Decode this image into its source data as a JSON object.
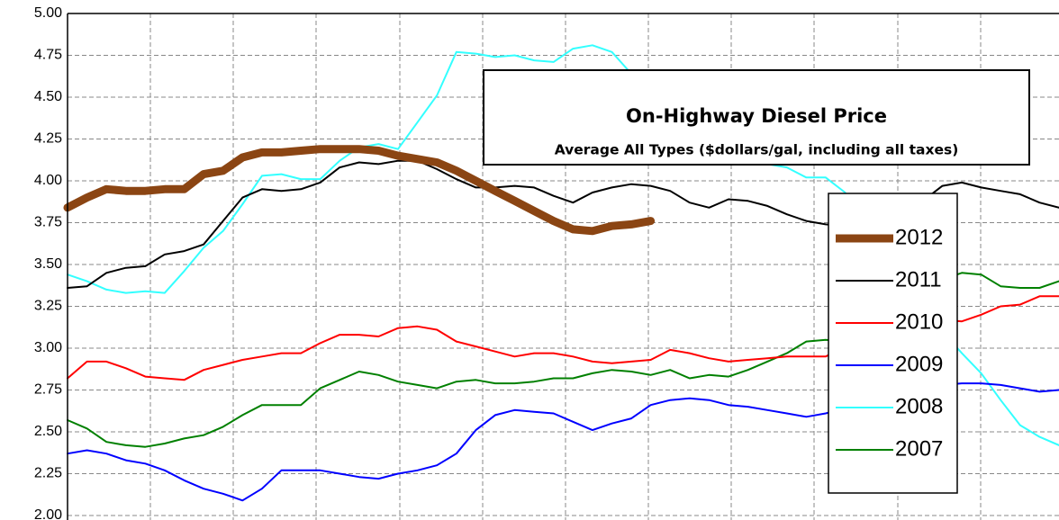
{
  "chart_data": {
    "type": "line",
    "title": "On-Highway Diesel Price",
    "subtitle": "Average All Types ($dollars/gal, including all taxes)",
    "ylim": [
      2,
      5
    ],
    "yticks": [
      {
        "value": 2,
        "label": "2.00"
      },
      {
        "value": 2.25,
        "label": "2.25"
      },
      {
        "value": 2.5,
        "label": "2.50"
      },
      {
        "value": 2.75,
        "label": "2.75"
      },
      {
        "value": 3,
        "label": "3.00"
      },
      {
        "value": 3.25,
        "label": "3.25"
      },
      {
        "value": 3.5,
        "label": "3.50"
      },
      {
        "value": 3.75,
        "label": "3.75"
      },
      {
        "value": 4,
        "label": "4.00"
      },
      {
        "value": 4.25,
        "label": "4.25"
      },
      {
        "value": 4.5,
        "label": "4.50"
      },
      {
        "value": 4.75,
        "label": "4.75"
      },
      {
        "value": 5,
        "label": "5.00"
      }
    ],
    "grid": true,
    "series": [
      {
        "name": "2012",
        "color": "#8b4513",
        "width": 9,
        "values": [
          3.84,
          3.9,
          3.95,
          3.94,
          3.94,
          3.95,
          3.95,
          4.04,
          4.06,
          4.14,
          4.17,
          4.17,
          4.18,
          4.19,
          4.19,
          4.19,
          4.18,
          4.15,
          4.13,
          4.11,
          4.06,
          4.0,
          3.94,
          3.88,
          3.82,
          3.76,
          3.71,
          3.7,
          3.73,
          3.74,
          3.76
        ]
      },
      {
        "name": "2011",
        "color": "#000000",
        "width": 2,
        "values": [
          3.36,
          3.37,
          3.45,
          3.48,
          3.49,
          3.56,
          3.58,
          3.62,
          3.76,
          3.9,
          3.95,
          3.94,
          3.95,
          3.99,
          4.08,
          4.11,
          4.1,
          4.12,
          4.12,
          4.07,
          4.01,
          3.96,
          3.96,
          3.97,
          3.96,
          3.91,
          3.87,
          3.93,
          3.96,
          3.98,
          3.97,
          3.94,
          3.87,
          3.84,
          3.89,
          3.88,
          3.85,
          3.8,
          3.76,
          3.74,
          3.73,
          3.82,
          3.84,
          3.89,
          3.88,
          3.97,
          3.99,
          3.96,
          3.94,
          3.92,
          3.87,
          3.84
        ]
      },
      {
        "name": "2010",
        "color": "#ff0000",
        "width": 2,
        "values": [
          2.82,
          2.92,
          2.92,
          2.88,
          2.83,
          2.82,
          2.81,
          2.87,
          2.9,
          2.93,
          2.95,
          2.97,
          2.97,
          3.03,
          3.08,
          3.08,
          3.07,
          3.12,
          3.13,
          3.11,
          3.04,
          3.01,
          2.98,
          2.95,
          2.97,
          2.97,
          2.95,
          2.92,
          2.91,
          2.92,
          2.93,
          2.99,
          2.97,
          2.94,
          2.92,
          2.93,
          2.94,
          2.95,
          2.95,
          2.95,
          3.01,
          3.07,
          3.09,
          3.11,
          3.14,
          3.17,
          3.16,
          3.2,
          3.25,
          3.26,
          3.31,
          3.31
        ]
      },
      {
        "name": "2009",
        "color": "#0000ff",
        "width": 2,
        "values": [
          2.37,
          2.39,
          2.37,
          2.33,
          2.31,
          2.27,
          2.21,
          2.16,
          2.13,
          2.09,
          2.16,
          2.27,
          2.27,
          2.27,
          2.25,
          2.23,
          2.22,
          2.25,
          2.27,
          2.3,
          2.37,
          2.51,
          2.6,
          2.63,
          2.62,
          2.61,
          2.56,
          2.51,
          2.55,
          2.58,
          2.66,
          2.69,
          2.7,
          2.69,
          2.66,
          2.65,
          2.63,
          2.61,
          2.59,
          2.61,
          2.64,
          2.68,
          2.71,
          2.74,
          2.77,
          2.78,
          2.79,
          2.79,
          2.78,
          2.76,
          2.74,
          2.75
        ]
      },
      {
        "name": "2008",
        "color": "#33ffff",
        "width": 2,
        "values": [
          3.44,
          3.4,
          3.35,
          3.33,
          3.34,
          3.33,
          3.46,
          3.6,
          3.7,
          3.86,
          4.03,
          4.04,
          4.01,
          4.01,
          4.12,
          4.2,
          4.22,
          4.19,
          4.35,
          4.51,
          4.77,
          4.76,
          4.74,
          4.75,
          4.72,
          4.71,
          4.79,
          4.81,
          4.77,
          4.64,
          4.55,
          4.47,
          4.36,
          4.25,
          4.2,
          4.17,
          4.1,
          4.08,
          4.02,
          4.02,
          3.93,
          3.73,
          3.52,
          3.35,
          3.22,
          3.1,
          2.97,
          2.85,
          2.69,
          2.54,
          2.47,
          2.42
        ]
      },
      {
        "name": "2007",
        "color": "#008000",
        "width": 2,
        "values": [
          2.57,
          2.52,
          2.44,
          2.42,
          2.41,
          2.43,
          2.46,
          2.48,
          2.53,
          2.6,
          2.66,
          2.66,
          2.66,
          2.76,
          2.81,
          2.86,
          2.84,
          2.8,
          2.78,
          2.76,
          2.8,
          2.81,
          2.79,
          2.79,
          2.8,
          2.82,
          2.82,
          2.85,
          2.87,
          2.86,
          2.84,
          2.87,
          2.82,
          2.84,
          2.83,
          2.87,
          2.92,
          2.97,
          3.04,
          3.05,
          3.04,
          3.12,
          3.23,
          3.32,
          3.37,
          3.41,
          3.45,
          3.44,
          3.37,
          3.36,
          3.36,
          3.4
        ]
      }
    ]
  }
}
